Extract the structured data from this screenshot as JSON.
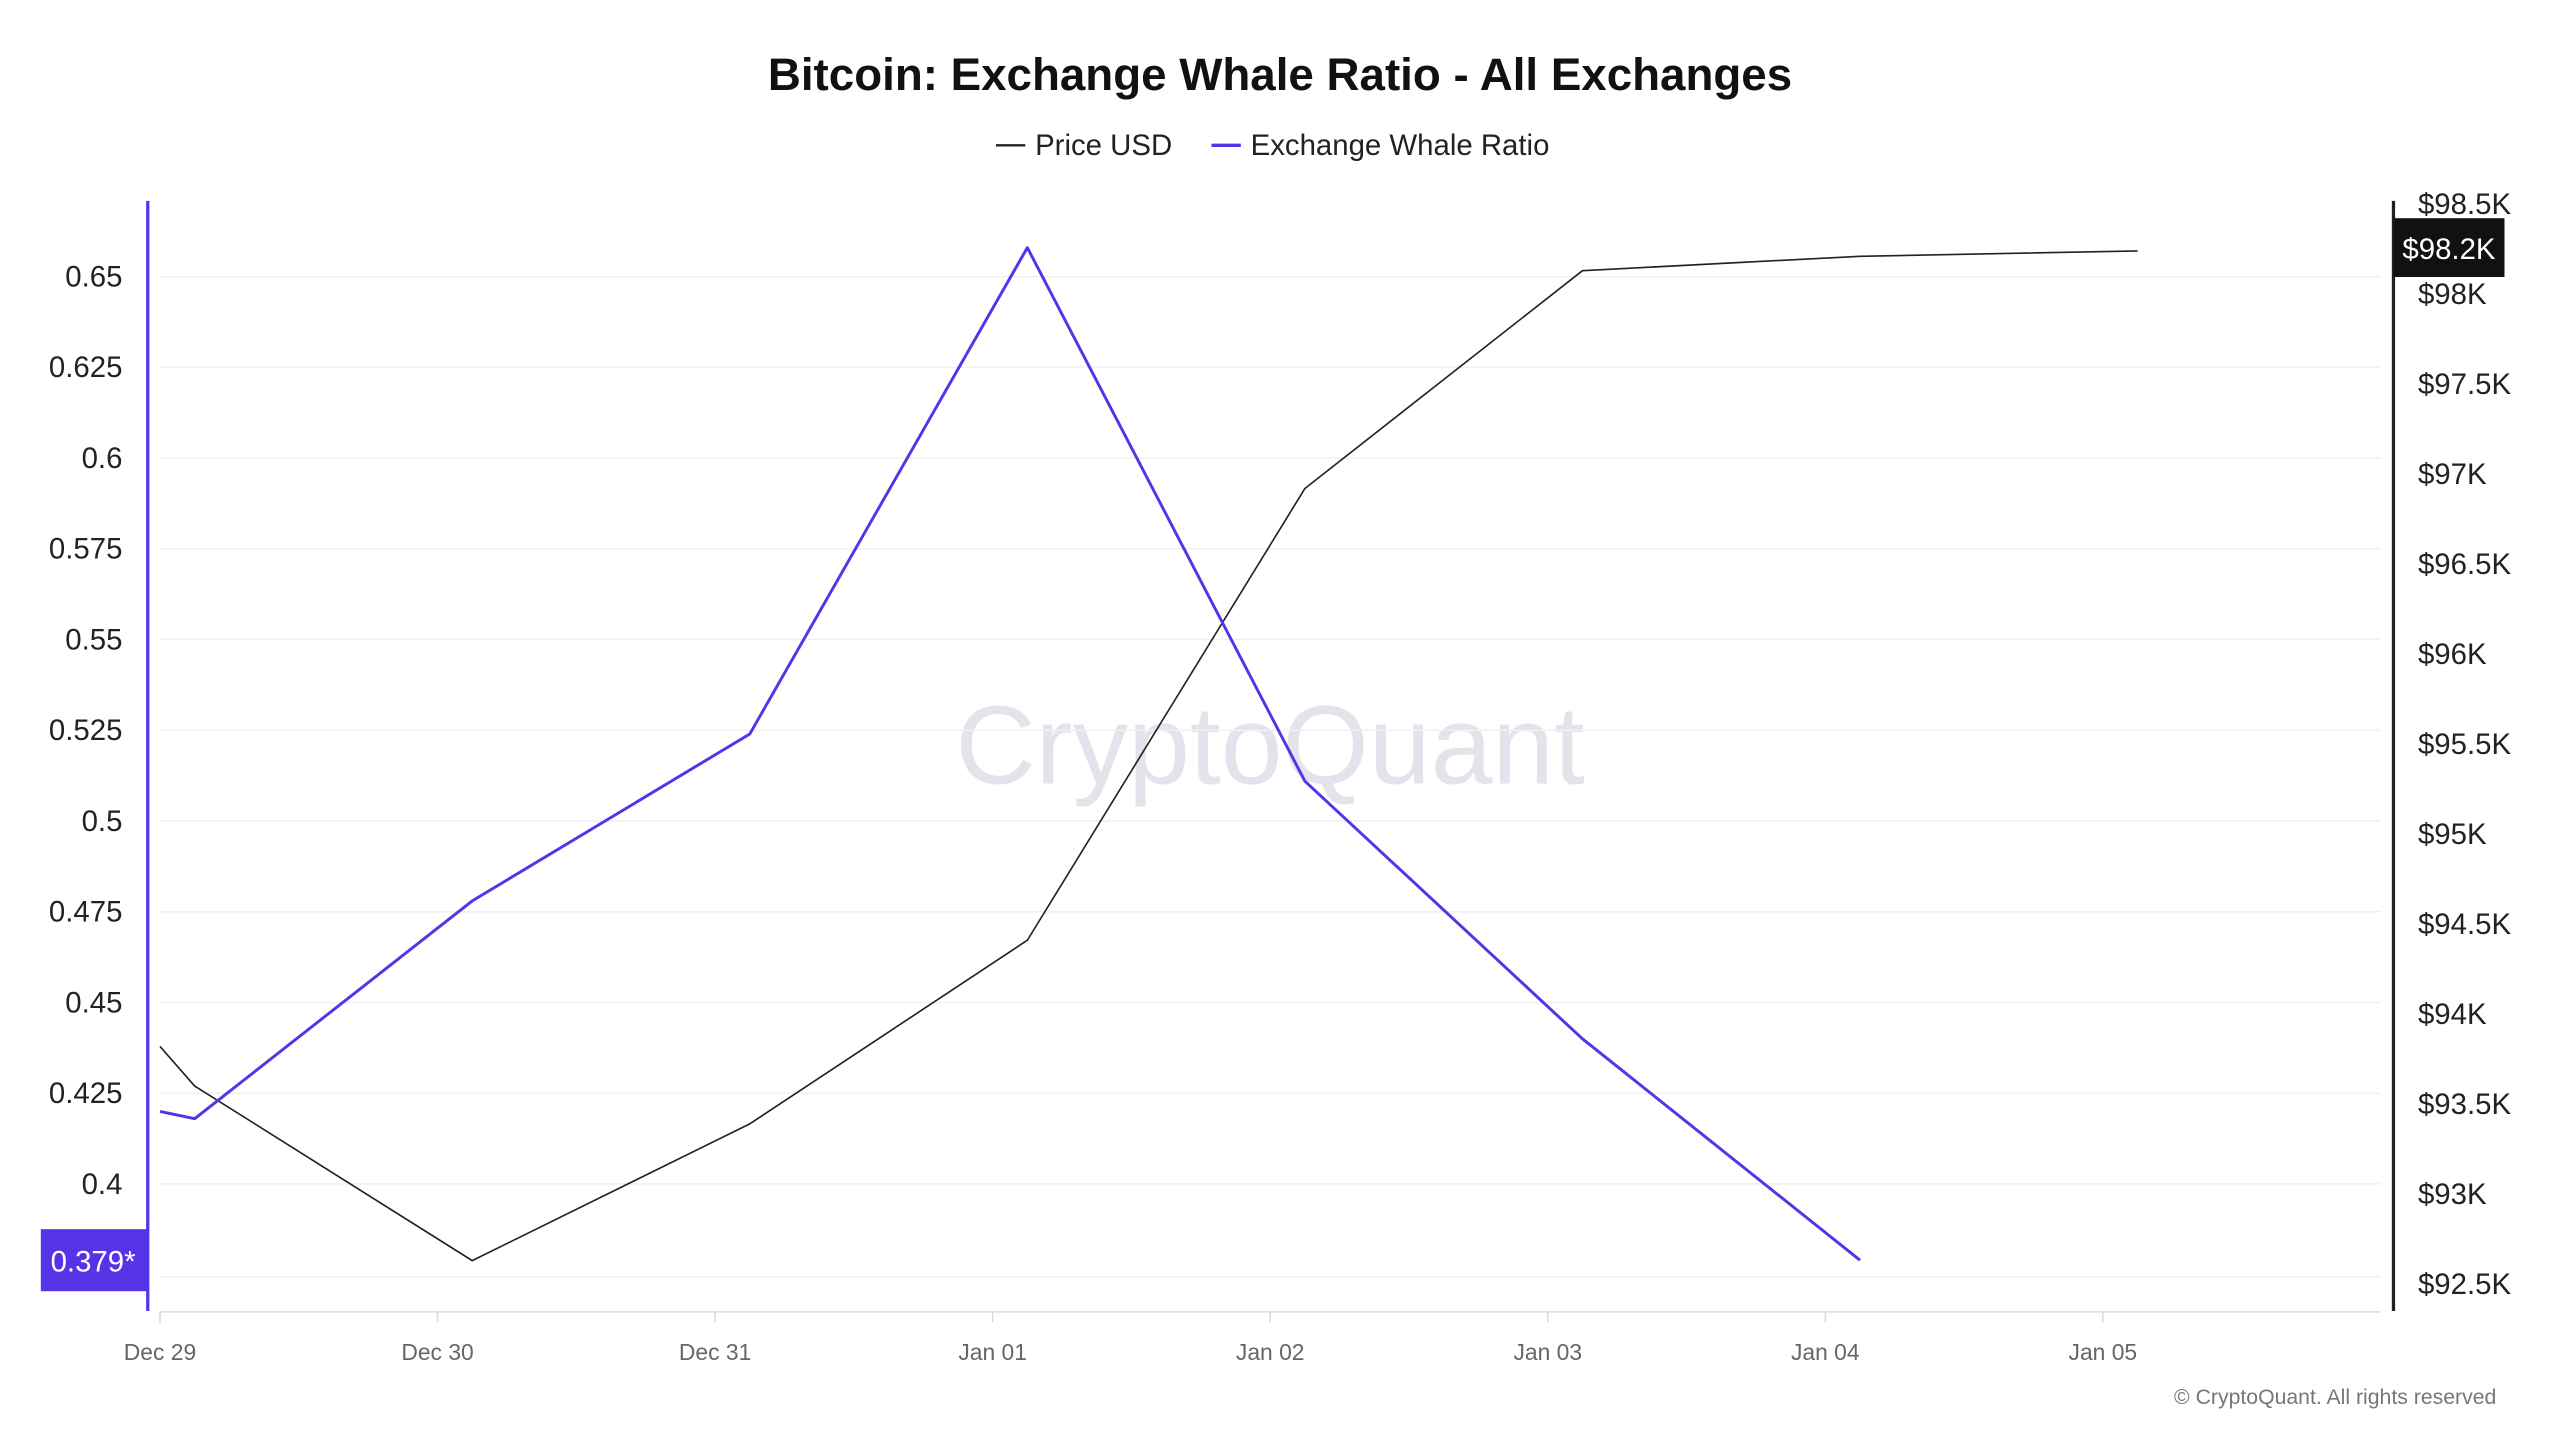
{
  "chart_data": {
    "type": "line",
    "title": "Bitcoin: Exchange Whale Ratio - All Exchanges",
    "watermark": "CryptoQuant",
    "copyright": "© CryptoQuant. All rights reserved",
    "legend_position": "top-center",
    "grid": true,
    "x_ticks": [
      "Dec 29",
      "Dec 30",
      "Dec 31",
      "Jan 01",
      "Jan 02",
      "Jan 03",
      "Jan 04",
      "Jan 05"
    ],
    "x_points": [
      "Dec 29 00:00",
      "Dec 29 03:00",
      "Dec 30 03:00",
      "Dec 31 03:00",
      "Jan 01 03:00",
      "Jan 02 03:00",
      "Jan 03 03:00",
      "Jan 04 03:00",
      "Jan 05 03:00"
    ],
    "left_axis": {
      "ticks": [
        "0.65",
        "0.625",
        "0.6",
        "0.575",
        "0.55",
        "0.525",
        "0.5",
        "0.475",
        "0.45",
        "0.425",
        "0.4"
      ],
      "ylim": [
        0.365,
        0.67
      ],
      "color": "#5533e6"
    },
    "right_axis": {
      "ticks": [
        "$98.5K",
        "$98K",
        "$97.5K",
        "$97K",
        "$96.5K",
        "$96K",
        "$95.5K",
        "$95K",
        "$94.5K",
        "$94K",
        "$93.5K",
        "$93K",
        "$92.5K"
      ],
      "ylim": [
        92350,
        98500
      ],
      "color": "#111111"
    },
    "series": [
      {
        "name": "Price USD",
        "axis": "right",
        "color": "#222222",
        "values": [
          93820,
          93600,
          92630,
          93390,
          94410,
          96920,
          98130,
          98210,
          98240
        ],
        "last_label": "$98.2K"
      },
      {
        "name": "Exchange Whale Ratio",
        "axis": "left",
        "color": "#5533e6",
        "values": [
          0.42,
          0.418,
          0.478,
          0.524,
          0.658,
          0.511,
          0.44,
          0.379,
          null
        ],
        "last_label": "0.379*"
      }
    ]
  }
}
